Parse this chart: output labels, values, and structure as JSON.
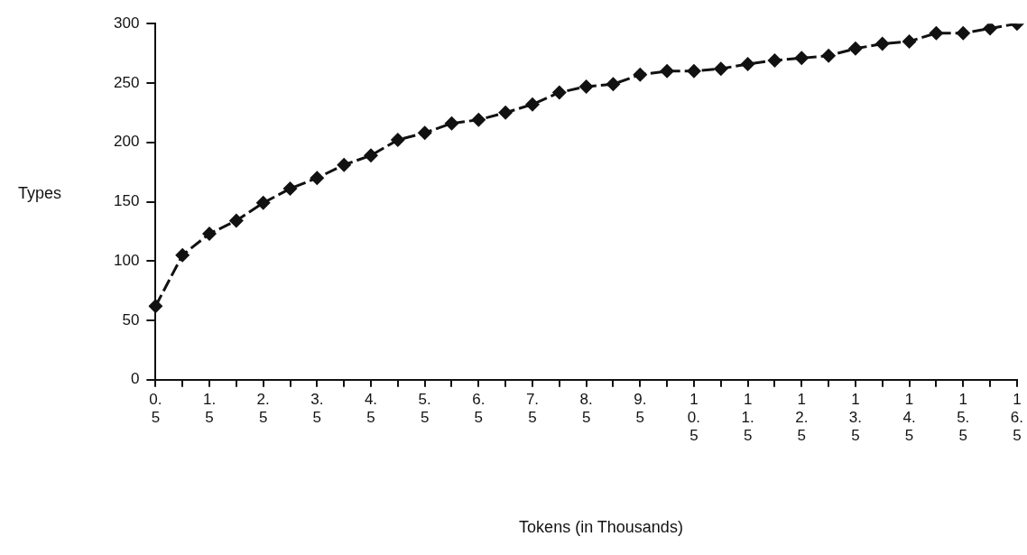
{
  "chart_data": {
    "type": "line",
    "xlabel": "Tokens (in Thousands)",
    "ylabel": "Types",
    "categories": [
      "0.5",
      null,
      "1.5",
      null,
      "2.5",
      null,
      "3.5",
      null,
      "4.5",
      null,
      "5.5",
      null,
      "6.5",
      null,
      "7.5",
      null,
      "8.5",
      null,
      "9.5",
      null,
      "10.5",
      null,
      "11.5",
      null,
      "12.5",
      null,
      "13.5",
      null,
      "14.5",
      null,
      "15.5",
      null,
      "16.5"
    ],
    "series": [
      {
        "color": "#111111",
        "values": [
          62,
          105,
          123,
          134,
          149,
          161,
          170,
          181,
          189,
          202,
          208,
          216,
          219,
          225,
          232,
          242,
          247,
          249,
          257,
          260,
          260,
          262,
          266,
          269,
          271,
          273,
          279,
          283,
          285,
          292,
          292,
          296,
          300
        ]
      }
    ],
    "ylim": [
      0,
      300
    ],
    "yticks": [
      0,
      50,
      100,
      150,
      200,
      250,
      300
    ],
    "grid": false,
    "legend": false,
    "marker": "diamond",
    "line_style": "dashed"
  }
}
